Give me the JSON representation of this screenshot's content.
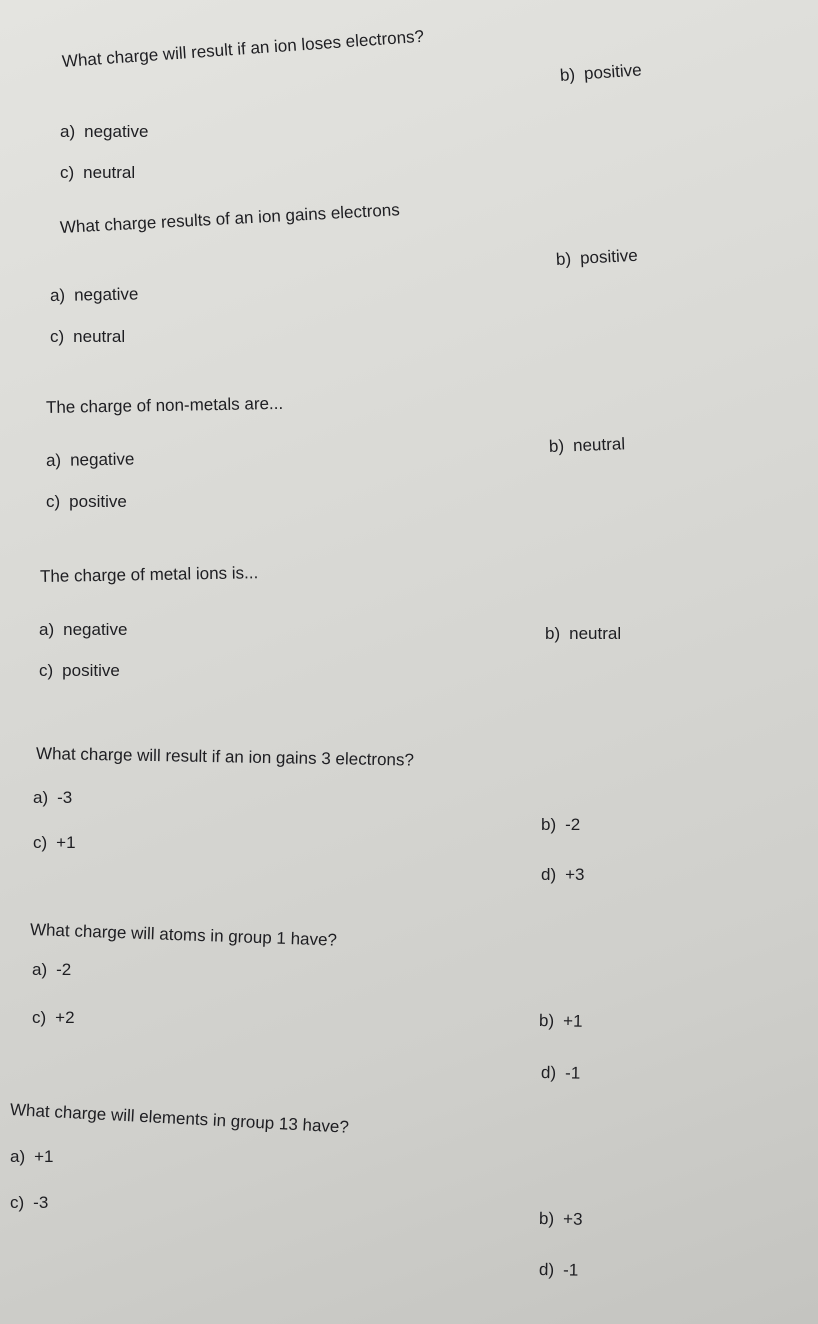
{
  "questions": [
    {
      "text": "What charge will result if an ion loses electrons?",
      "options": [
        {
          "letter": "a)",
          "text": "negative"
        },
        {
          "letter": "b)",
          "text": "positive"
        },
        {
          "letter": "c)",
          "text": "neutral"
        }
      ]
    },
    {
      "text": "What charge results of an ion gains electrons",
      "options": [
        {
          "letter": "a)",
          "text": "negative"
        },
        {
          "letter": "b)",
          "text": "positive"
        },
        {
          "letter": "c)",
          "text": "neutral"
        }
      ]
    },
    {
      "text": "The charge of non-metals are...",
      "options": [
        {
          "letter": "a)",
          "text": "negative"
        },
        {
          "letter": "b)",
          "text": "neutral"
        },
        {
          "letter": "c)",
          "text": "positive"
        }
      ]
    },
    {
      "text": "The charge of metal ions is...",
      "options": [
        {
          "letter": "a)",
          "text": "negative"
        },
        {
          "letter": "b)",
          "text": "neutral"
        },
        {
          "letter": "c)",
          "text": "positive"
        }
      ]
    },
    {
      "text": "What charge will result if an ion gains 3 electrons?",
      "options": [
        {
          "letter": "a)",
          "text": "-3"
        },
        {
          "letter": "b)",
          "text": "-2"
        },
        {
          "letter": "c)",
          "text": "+1"
        },
        {
          "letter": "d)",
          "text": "+3"
        }
      ]
    },
    {
      "text": "What charge will atoms in group 1 have?",
      "options": [
        {
          "letter": "a)",
          "text": "-2"
        },
        {
          "letter": "b)",
          "text": "+1"
        },
        {
          "letter": "c)",
          "text": "+2"
        },
        {
          "letter": "d)",
          "text": "-1"
        }
      ]
    },
    {
      "text": "What charge will elements in group 13 have?",
      "options": [
        {
          "letter": "a)",
          "text": "+1"
        },
        {
          "letter": "b)",
          "text": "+3"
        },
        {
          "letter": "c)",
          "text": "-3"
        },
        {
          "letter": "d)",
          "text": "-1"
        }
      ]
    }
  ]
}
